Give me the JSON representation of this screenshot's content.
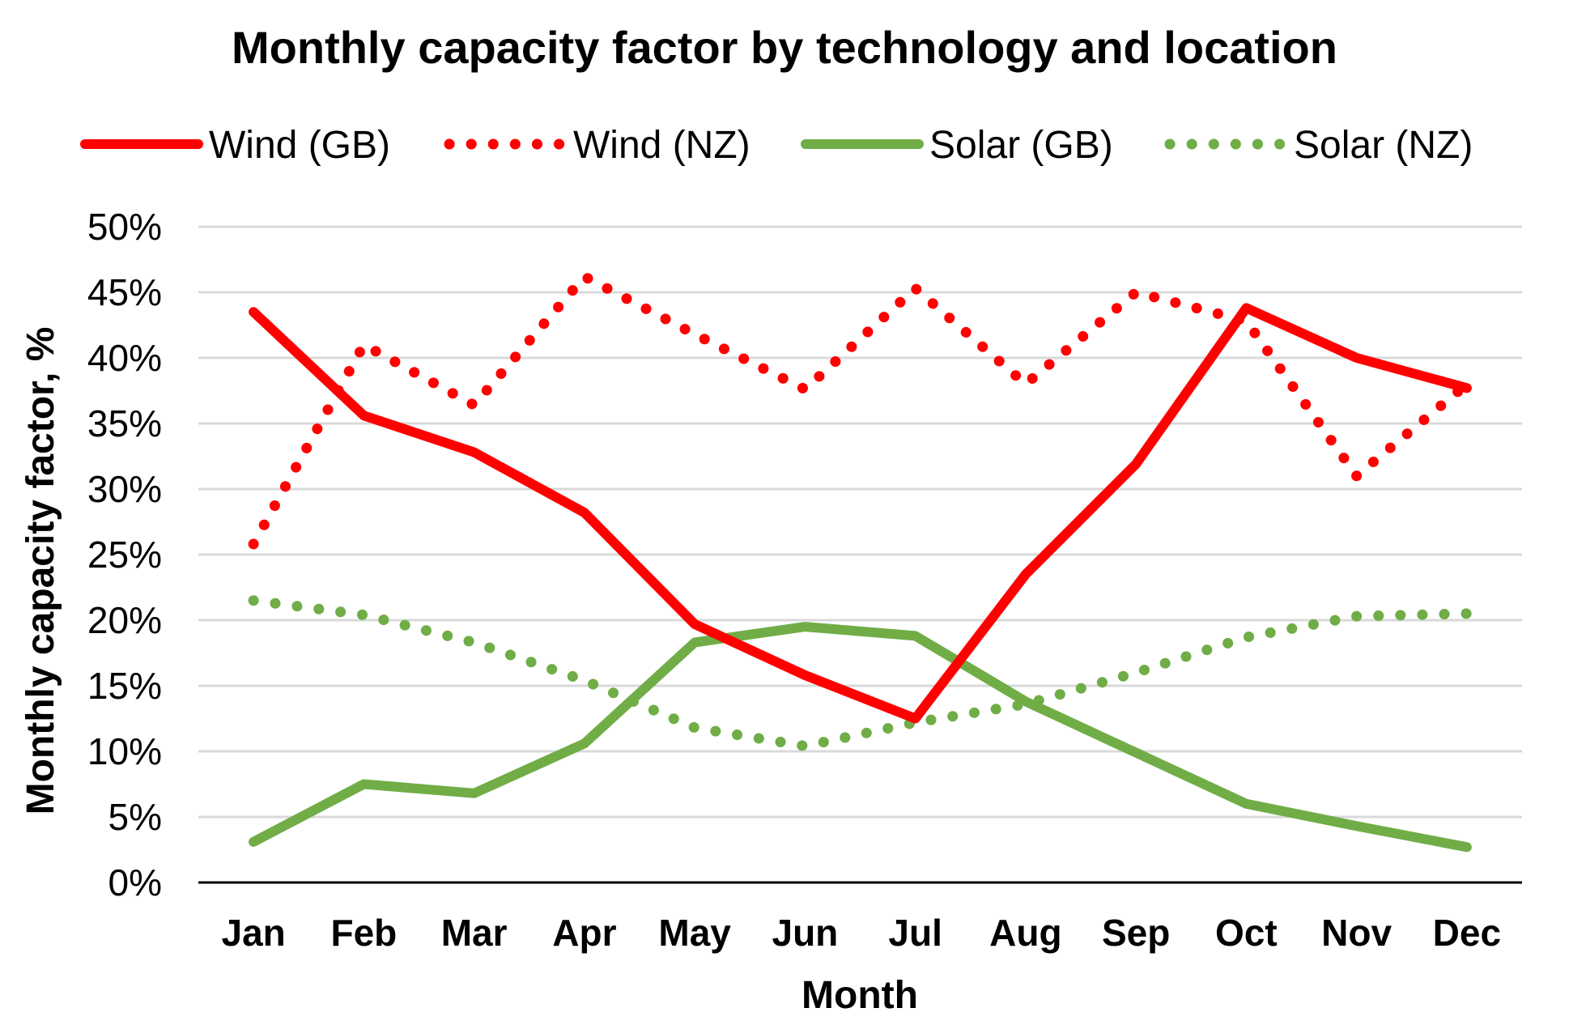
{
  "chart_data": {
    "type": "line",
    "title": "Monthly capacity factor by technology and location",
    "xlabel": "Month",
    "ylabel": "Monthly capacity factor, %",
    "ylim": [
      0,
      50
    ],
    "yticks": [
      "0%",
      "5%",
      "10%",
      "15%",
      "20%",
      "25%",
      "30%",
      "35%",
      "40%",
      "45%",
      "50%"
    ],
    "ytick_values": [
      0,
      5,
      10,
      15,
      20,
      25,
      30,
      35,
      40,
      45,
      50
    ],
    "categories": [
      "Jan",
      "Feb",
      "Mar",
      "Apr",
      "May",
      "Jun",
      "Jul",
      "Aug",
      "Sep",
      "Oct",
      "Nov",
      "Dec"
    ],
    "grid": true,
    "legend_position": "top",
    "series": [
      {
        "name": "Wind (GB)",
        "color": "#ff0000",
        "style": "solid",
        "values": [
          43.5,
          35.6,
          32.8,
          28.2,
          19.7,
          15.8,
          12.5,
          23.5,
          31.9,
          43.8,
          40.0,
          37.7
        ]
      },
      {
        "name": "Wind (NZ)",
        "color": "#ff0000",
        "style": "dotted",
        "values": [
          25.8,
          41.0,
          36.4,
          46.2,
          41.8,
          37.6,
          45.3,
          38.0,
          45.0,
          42.8,
          31.0,
          38.0
        ]
      },
      {
        "name": "Solar (GB)",
        "color": "#70ad47",
        "style": "solid",
        "values": [
          3.1,
          7.5,
          6.8,
          10.6,
          18.3,
          19.5,
          18.8,
          13.8,
          9.9,
          6.0,
          4.3,
          2.7
        ]
      },
      {
        "name": "Solar (NZ)",
        "color": "#70ad47",
        "style": "dotted",
        "values": [
          21.5,
          20.4,
          18.3,
          15.4,
          11.8,
          10.4,
          12.2,
          13.6,
          16.0,
          18.7,
          20.3,
          20.5
        ]
      }
    ]
  }
}
